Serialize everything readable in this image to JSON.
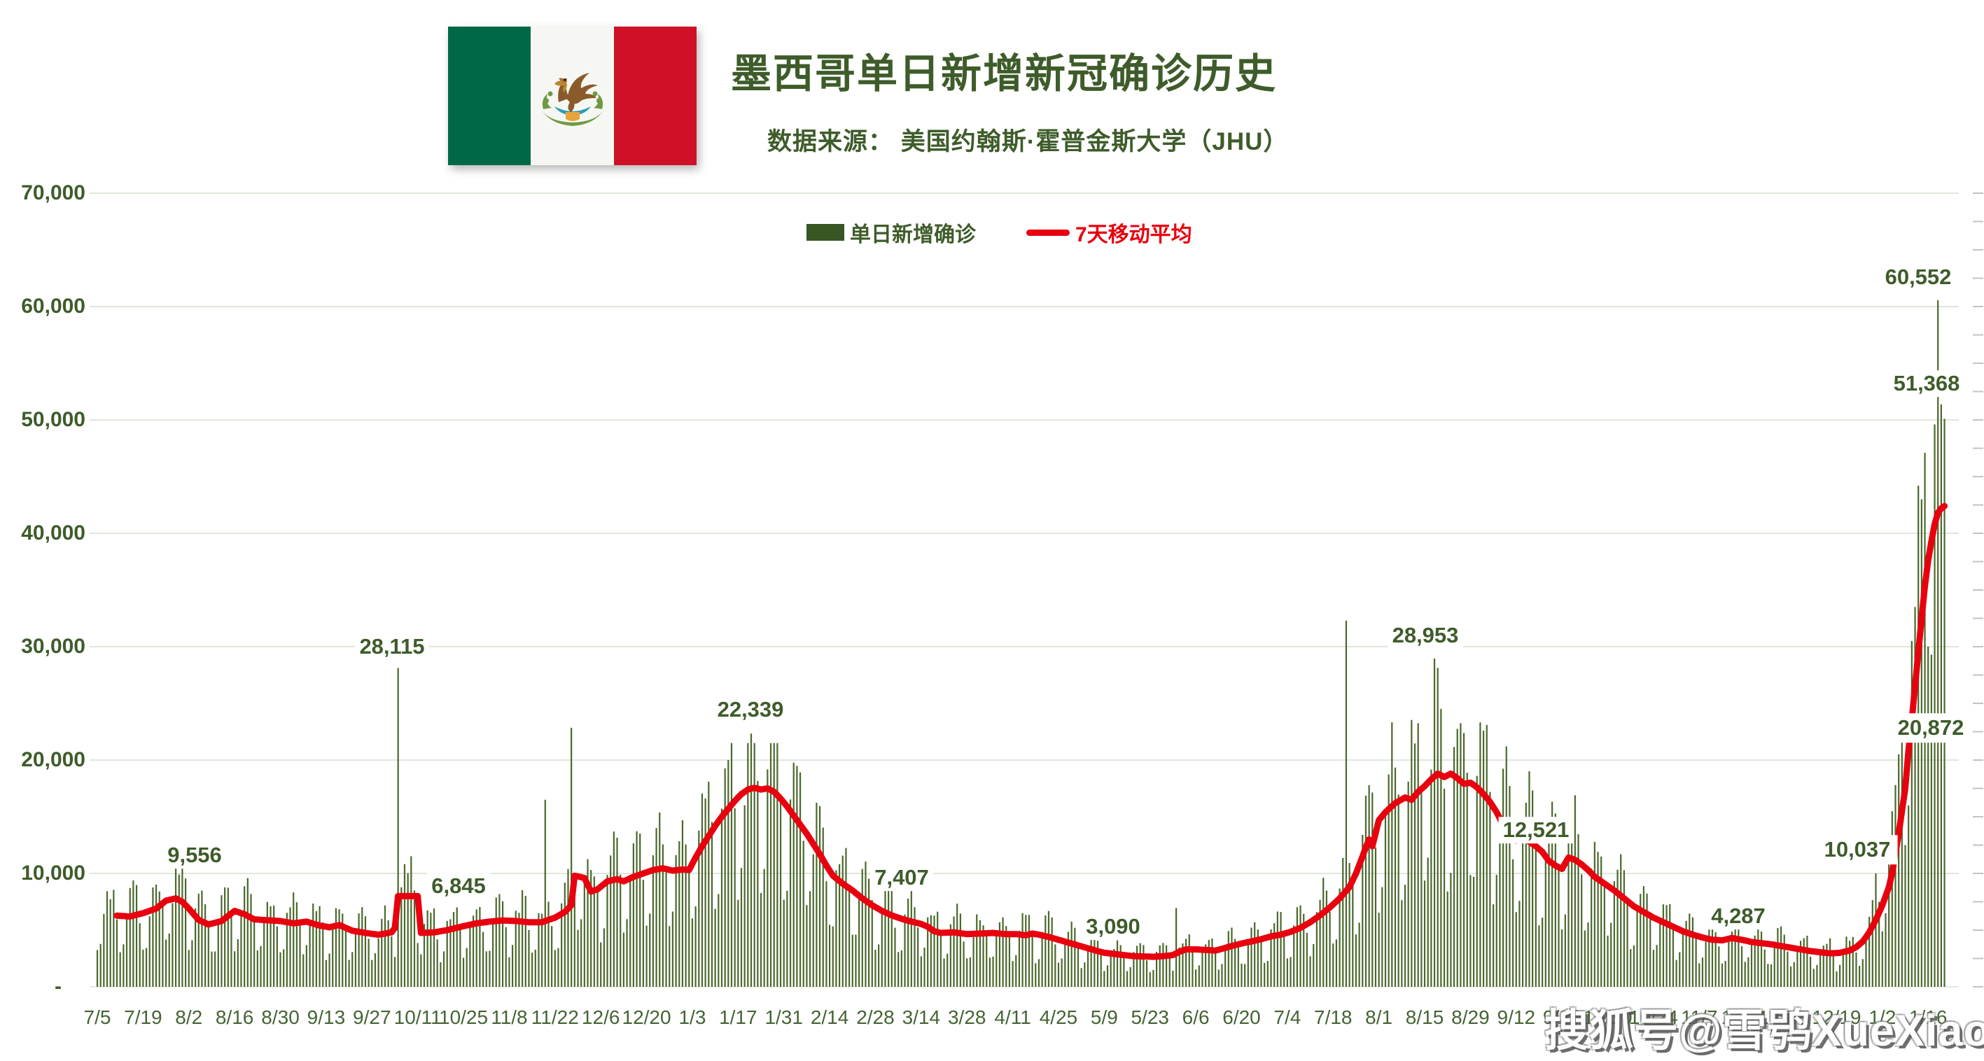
{
  "header": {
    "title": "墨西哥单日新增新冠确诊历史",
    "subtitle": "数据来源：  美国约翰斯·霍普金斯大学（JHU）"
  },
  "flag": {
    "country": "Mexico",
    "green": "#006847",
    "white": "#f6f7f2",
    "red": "#ce1126"
  },
  "legend": {
    "items": [
      {
        "label": "单日新增确诊",
        "marker": "bar",
        "color": "#375623"
      },
      {
        "label": "7天移动平均",
        "marker": "line",
        "color": "#e8000e"
      }
    ]
  },
  "watermark": {
    "text": "搜狐号@雪鸮XueXiao"
  },
  "colors": {
    "bar": "#4a682c",
    "line": "#e8000e",
    "grid": "#dfe7da",
    "baseline": "#e6ecdf",
    "text_green": "#3e5c2a",
    "minor_tick": "#bfc5bf",
    "background": "#ffffff"
  },
  "chart_data": {
    "type": "bar",
    "title": "墨西哥单日新增新冠确诊历史",
    "xlabel": "",
    "ylabel": "",
    "ylim": [
      0,
      70000
    ],
    "grid": true,
    "legend_position": "top-center",
    "start_date": "2020-07-05",
    "end_date": "2022-01-21",
    "x_tick_interval_days": 14,
    "x_tick_labels": [
      "7/5",
      "7/19",
      "8/2",
      "8/16",
      "8/30",
      "9/13",
      "9/27",
      "10/11",
      "10/25",
      "11/8",
      "11/22",
      "12/6",
      "12/20",
      "1/3",
      "1/17",
      "1/31",
      "2/14",
      "2/28",
      "3/14",
      "3/28",
      "4/11",
      "4/25",
      "5/9",
      "5/23",
      "6/6",
      "6/20",
      "7/4",
      "7/18",
      "8/1",
      "8/15",
      "8/29",
      "9/12",
      "9/26",
      "10/10",
      "10/24",
      "11/7",
      "11/21",
      "12/5",
      "12/19",
      "1/2",
      "1/16"
    ],
    "y_ticks": [
      {
        "label": "70,000",
        "value": 70000
      },
      {
        "label": "60,000",
        "value": 60000
      },
      {
        "label": "50,000",
        "value": 50000
      },
      {
        "label": "40,000",
        "value": 40000
      },
      {
        "label": "30,000",
        "value": 30000
      },
      {
        "label": "20,000",
        "value": 20000
      },
      {
        "label": "10,000",
        "value": 10000
      },
      {
        "label": "-",
        "value": 0
      }
    ],
    "right_axis_minor_tick_unit": 2500,
    "series": [
      {
        "name": "单日新增确诊",
        "type": "bar",
        "color": "#4a682c",
        "days": 566,
        "synthesis": {
          "note": "daily bars = moving-average(day) x weekday factor x noise; day0 = Sunday 2020-07-05",
          "weekday_factors": [
            0.5,
            0.58,
            1.05,
            1.28,
            1.38,
            1.3,
            0.95
          ],
          "noise_range": [
            0.88,
            1.12
          ],
          "seed": 20220119,
          "peak_clamp": {
            "from": 186,
            "to": 232,
            "except": 200,
            "max": 21500
          }
        },
        "overrides": {
          "27": 9556,
          "92": 28115,
          "137": 16500,
          "145": 22850,
          "200": 22339,
          "330": 6950,
          "382": 32300,
          "409": 28953,
          "544": 10000,
          "545": 7500,
          "546": 4900,
          "547": 6500,
          "548": 11500,
          "549": 15500,
          "550": 17800,
          "551": 20500,
          "552": 23000,
          "553": 12500,
          "554": 16000,
          "555": 30500,
          "556": 33500,
          "557": 44200,
          "558": 43000,
          "559": 47100,
          "560": 30000,
          "561": 29300,
          "562": 49600,
          "563": 60552,
          "564": 51368,
          "565": 50100
        }
      },
      {
        "name": "7天移动平均",
        "type": "line",
        "color": "#e8000e",
        "start_day": 6,
        "anchors": [
          [
            0,
            6100
          ],
          [
            5,
            6300
          ],
          [
            10,
            6200
          ],
          [
            14,
            6500
          ],
          [
            18,
            6900
          ],
          [
            21,
            7600
          ],
          [
            24,
            7800
          ],
          [
            26,
            7500
          ],
          [
            28,
            6900
          ],
          [
            31,
            5900
          ],
          [
            34,
            5500
          ],
          [
            38,
            5800
          ],
          [
            42,
            6700
          ],
          [
            45,
            6400
          ],
          [
            48,
            5950
          ],
          [
            53,
            5850
          ],
          [
            56,
            5800
          ],
          [
            60,
            5600
          ],
          [
            64,
            5750
          ],
          [
            68,
            5400
          ],
          [
            71,
            5250
          ],
          [
            74,
            5450
          ],
          [
            78,
            4950
          ],
          [
            82,
            4750
          ],
          [
            86,
            4600
          ],
          [
            90,
            4800
          ],
          [
            91,
            5200
          ],
          [
            92,
            8000
          ],
          [
            98,
            8000
          ],
          [
            99,
            4750
          ],
          [
            103,
            4800
          ],
          [
            107,
            5000
          ],
          [
            112,
            5350
          ],
          [
            116,
            5600
          ],
          [
            120,
            5750
          ],
          [
            124,
            5850
          ],
          [
            128,
            5800
          ],
          [
            132,
            5700
          ],
          [
            136,
            5700
          ],
          [
            140,
            6100
          ],
          [
            143,
            6600
          ],
          [
            145,
            7200
          ],
          [
            146,
            9800
          ],
          [
            149,
            9600
          ],
          [
            151,
            8400
          ],
          [
            153,
            8600
          ],
          [
            156,
            9300
          ],
          [
            159,
            9500
          ],
          [
            161,
            9300
          ],
          [
            164,
            9700
          ],
          [
            167,
            10000
          ],
          [
            170,
            10300
          ],
          [
            173,
            10450
          ],
          [
            176,
            10250
          ],
          [
            179,
            10350
          ],
          [
            181,
            10300
          ],
          [
            183,
            11400
          ],
          [
            185,
            12400
          ],
          [
            187,
            13300
          ],
          [
            189,
            14200
          ],
          [
            191,
            15000
          ],
          [
            193,
            15700
          ],
          [
            195,
            16400
          ],
          [
            197,
            17000
          ],
          [
            199,
            17400
          ],
          [
            201,
            17550
          ],
          [
            203,
            17400
          ],
          [
            205,
            17500
          ],
          [
            207,
            17200
          ],
          [
            209,
            16600
          ],
          [
            211,
            15900
          ],
          [
            213,
            15100
          ],
          [
            215,
            14300
          ],
          [
            217,
            13500
          ],
          [
            219,
            12600
          ],
          [
            221,
            11700
          ],
          [
            223,
            10700
          ],
          [
            225,
            9800
          ],
          [
            228,
            9100
          ],
          [
            231,
            8500
          ],
          [
            234,
            7800
          ],
          [
            237,
            7200
          ],
          [
            240,
            6700
          ],
          [
            243,
            6300
          ],
          [
            246,
            6000
          ],
          [
            249,
            5750
          ],
          [
            252,
            5550
          ],
          [
            254,
            5300
          ],
          [
            256,
            4900
          ],
          [
            258,
            4750
          ],
          [
            262,
            4800
          ],
          [
            266,
            4650
          ],
          [
            270,
            4700
          ],
          [
            274,
            4750
          ],
          [
            278,
            4650
          ],
          [
            281,
            4650
          ],
          [
            284,
            4550
          ],
          [
            286,
            4700
          ],
          [
            288,
            4600
          ],
          [
            291,
            4400
          ],
          [
            294,
            4150
          ],
          [
            297,
            3900
          ],
          [
            300,
            3650
          ],
          [
            303,
            3400
          ],
          [
            306,
            3150
          ],
          [
            308,
            3000
          ],
          [
            311,
            2900
          ],
          [
            314,
            2800
          ],
          [
            317,
            2700
          ],
          [
            320,
            2680
          ],
          [
            323,
            2650
          ],
          [
            326,
            2700
          ],
          [
            329,
            2800
          ],
          [
            331,
            3100
          ],
          [
            333,
            3300
          ],
          [
            336,
            3300
          ],
          [
            339,
            3250
          ],
          [
            342,
            3200
          ],
          [
            344,
            3350
          ],
          [
            347,
            3600
          ],
          [
            350,
            3820
          ],
          [
            353,
            4000
          ],
          [
            356,
            4200
          ],
          [
            359,
            4450
          ],
          [
            362,
            4600
          ],
          [
            365,
            4850
          ],
          [
            368,
            5200
          ],
          [
            371,
            5700
          ],
          [
            374,
            6300
          ],
          [
            377,
            7000
          ],
          [
            380,
            7800
          ],
          [
            383,
            8800
          ],
          [
            385,
            10000
          ],
          [
            387,
            11500
          ],
          [
            388,
            12300
          ],
          [
            389,
            13000
          ],
          [
            390,
            12400
          ],
          [
            392,
            14700
          ],
          [
            394,
            15400
          ],
          [
            397,
            16200
          ],
          [
            400,
            16700
          ],
          [
            402,
            16500
          ],
          [
            404,
            17200
          ],
          [
            406,
            17700
          ],
          [
            408,
            18300
          ],
          [
            410,
            18800
          ],
          [
            412,
            18500
          ],
          [
            414,
            18800
          ],
          [
            416,
            18400
          ],
          [
            418,
            17900
          ],
          [
            420,
            18000
          ],
          [
            422,
            17600
          ],
          [
            424,
            17000
          ],
          [
            426,
            16300
          ],
          [
            428,
            15400
          ],
          [
            430,
            14300
          ],
          [
            432,
            13400
          ],
          [
            434,
            12900
          ],
          [
            436,
            13200
          ],
          [
            438,
            12800
          ],
          [
            440,
            12400
          ],
          [
            442,
            11900
          ],
          [
            444,
            11100
          ],
          [
            446,
            10700
          ],
          [
            448,
            10400
          ],
          [
            450,
            11400
          ],
          [
            452,
            11200
          ],
          [
            454,
            10800
          ],
          [
            456,
            10300
          ],
          [
            458,
            9700
          ],
          [
            461,
            9100
          ],
          [
            464,
            8500
          ],
          [
            467,
            7800
          ],
          [
            470,
            7100
          ],
          [
            473,
            6600
          ],
          [
            476,
            6100
          ],
          [
            479,
            5700
          ],
          [
            482,
            5300
          ],
          [
            485,
            4900
          ],
          [
            488,
            4600
          ],
          [
            491,
            4350
          ],
          [
            494,
            4150
          ],
          [
            497,
            4100
          ],
          [
            500,
            4300
          ],
          [
            503,
            4150
          ],
          [
            506,
            3950
          ],
          [
            509,
            3850
          ],
          [
            512,
            3750
          ],
          [
            515,
            3600
          ],
          [
            518,
            3450
          ],
          [
            521,
            3300
          ],
          [
            524,
            3150
          ],
          [
            527,
            3050
          ],
          [
            530,
            2950
          ],
          [
            533,
            3000
          ],
          [
            536,
            3200
          ],
          [
            538,
            3500
          ],
          [
            540,
            4000
          ],
          [
            542,
            4800
          ],
          [
            544,
            5900
          ],
          [
            546,
            7200
          ],
          [
            548,
            8800
          ],
          [
            549,
            10037
          ],
          [
            551,
            13500
          ],
          [
            553,
            17500
          ],
          [
            554,
            20872
          ],
          [
            555,
            23500
          ],
          [
            556,
            26500
          ],
          [
            557,
            29500
          ],
          [
            558,
            32500
          ],
          [
            559,
            35300
          ],
          [
            560,
            37600
          ],
          [
            561,
            39300
          ],
          [
            562,
            40800
          ],
          [
            563,
            41800
          ],
          [
            564,
            42200
          ],
          [
            565,
            42400
          ]
        ]
      }
    ],
    "annotations": [
      {
        "label": "9,556",
        "x": 278,
        "y": 1222,
        "boxed": false
      },
      {
        "label": "28,115",
        "x": 560,
        "y": 924,
        "boxed": false
      },
      {
        "label": "6,845",
        "x": 655,
        "y": 1266,
        "boxed": false
      },
      {
        "label": "22,339",
        "x": 1072,
        "y": 1014,
        "boxed": false
      },
      {
        "label": "7,407",
        "x": 1288,
        "y": 1254,
        "boxed": false
      },
      {
        "label": "3,090",
        "x": 1590,
        "y": 1324,
        "boxed": false
      },
      {
        "label": "28,953",
        "x": 2036,
        "y": 908,
        "boxed": false
      },
      {
        "label": "12,521",
        "x": 2194,
        "y": 1186,
        "boxed": false
      },
      {
        "label": "4,287",
        "x": 2483,
        "y": 1309,
        "boxed": false
      },
      {
        "label": "10,037",
        "x": 2653,
        "y": 1214,
        "boxed": true
      },
      {
        "label": "20,872",
        "x": 2758,
        "y": 1040,
        "boxed": true
      },
      {
        "label": "51,368",
        "x": 2752,
        "y": 548,
        "boxed": false
      },
      {
        "label": "60,552",
        "x": 2740,
        "y": 396,
        "boxed": false
      }
    ]
  }
}
